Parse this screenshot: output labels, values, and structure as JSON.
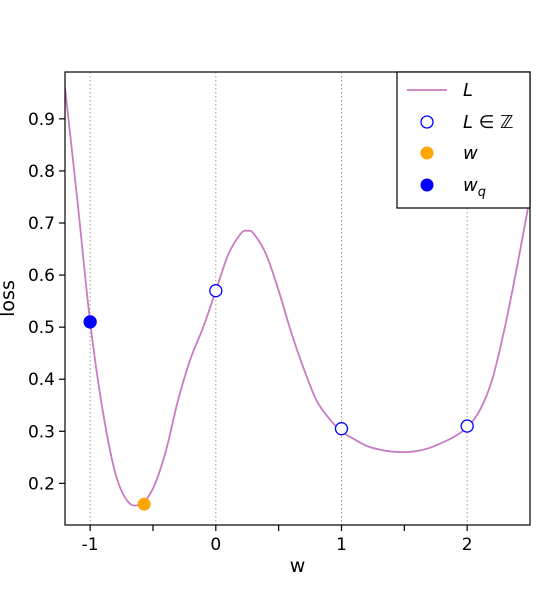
{
  "chart_data": {
    "type": "line",
    "xlabel": "w",
    "ylabel": "loss",
    "xlim": [
      -1.2,
      2.5
    ],
    "ylim": [
      0.12,
      0.99
    ],
    "x_ticks": [
      -1,
      0,
      1,
      2
    ],
    "x_minor_ticks": [
      -0.5,
      0.5,
      1.5
    ],
    "y_ticks": [
      0.2,
      0.3,
      0.4,
      0.5,
      0.6,
      0.7,
      0.8,
      0.9
    ],
    "vertical_gridlines_at": [
      -1,
      0,
      1,
      2
    ],
    "legend_position": "top-right",
    "colors": {
      "curve": "#c77cc4",
      "integer_markers": "#0000ff",
      "w": "#ffa500",
      "w_q": "#0000ff",
      "gridline": "#999999"
    },
    "series": [
      {
        "name": "L",
        "kind": "line",
        "x": [
          -1.2,
          -1.1,
          -1.0,
          -0.9,
          -0.8,
          -0.7,
          -0.6,
          -0.5,
          -0.4,
          -0.3,
          -0.2,
          -0.1,
          0.0,
          0.1,
          0.2,
          0.25,
          0.3,
          0.4,
          0.5,
          0.6,
          0.7,
          0.8,
          0.9,
          1.0,
          1.1,
          1.2,
          1.3,
          1.4,
          1.5,
          1.6,
          1.7,
          1.8,
          1.9,
          2.0,
          2.1,
          2.2,
          2.3,
          2.4,
          2.5
        ],
        "y": [
          0.96,
          0.74,
          0.51,
          0.34,
          0.22,
          0.165,
          0.16,
          0.19,
          0.26,
          0.36,
          0.44,
          0.5,
          0.57,
          0.64,
          0.68,
          0.685,
          0.68,
          0.64,
          0.57,
          0.49,
          0.42,
          0.36,
          0.325,
          0.3,
          0.285,
          0.272,
          0.265,
          0.261,
          0.26,
          0.262,
          0.268,
          0.278,
          0.29,
          0.308,
          0.34,
          0.4,
          0.5,
          0.62,
          0.75
        ]
      },
      {
        "name": "L ∈ ℤ",
        "kind": "open-circles",
        "x": [
          -1,
          0,
          1,
          2
        ],
        "y": [
          0.51,
          0.57,
          0.305,
          0.31
        ]
      },
      {
        "name": "w",
        "kind": "filled-circle",
        "x": [
          -0.57
        ],
        "y": [
          0.16
        ]
      },
      {
        "name": "w_q",
        "kind": "filled-circle",
        "x": [
          -1
        ],
        "y": [
          0.51
        ]
      }
    ],
    "legend": [
      {
        "label": "L",
        "sub": ""
      },
      {
        "label": "L ∈ ℤ",
        "sub": ""
      },
      {
        "label": "w",
        "sub": ""
      },
      {
        "label": "w",
        "sub": "q"
      }
    ]
  }
}
